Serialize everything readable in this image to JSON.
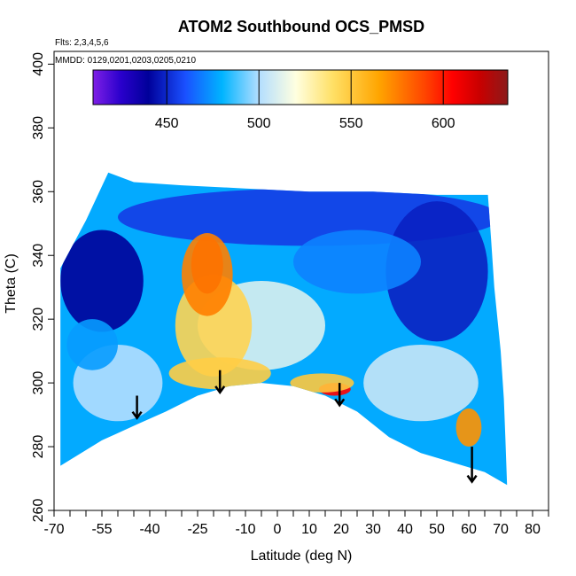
{
  "chart_data": {
    "type": "heatmap",
    "title": "ATOM2 Southbound OCS_PMSD",
    "annotations": {
      "flights": "Flts: 2,3,4,5,6",
      "dates": "MMDD: 0129,0201,0203,0205,0210"
    },
    "xlabel": "Latitude (deg N)",
    "ylabel": "Theta (C)",
    "xlim": [
      -70,
      85
    ],
    "ylim": [
      260,
      404
    ],
    "x_ticks": [
      -70,
      -55,
      -40,
      -25,
      -10,
      0,
      10,
      20,
      30,
      40,
      50,
      60,
      70,
      80
    ],
    "x_tick_labels": [
      "-70",
      "-55",
      "-40",
      "-25",
      "-10",
      "0",
      "10",
      "20",
      "30",
      "40",
      "50",
      "60",
      "70",
      "80"
    ],
    "x_minor_ticks": [
      -65,
      -60,
      -50,
      -45,
      -35,
      -30,
      -20,
      -15,
      -5,
      5,
      15,
      25,
      35,
      45,
      55,
      65,
      75,
      85
    ],
    "y_ticks": [
      260,
      280,
      300,
      320,
      340,
      360,
      380,
      400
    ],
    "y_tick_labels": [
      "260",
      "280",
      "300",
      "320",
      "340",
      "360",
      "380",
      "400"
    ],
    "colorbar": {
      "range": [
        410,
        635
      ],
      "ticks": [
        450,
        500,
        550,
        600
      ],
      "tick_labels": [
        "450",
        "500",
        "550",
        "600"
      ],
      "stops": [
        {
          "v": 410,
          "c": "#7f1fe6"
        },
        {
          "v": 425,
          "c": "#2a00cc"
        },
        {
          "v": 440,
          "c": "#00009a"
        },
        {
          "v": 460,
          "c": "#1a50ff"
        },
        {
          "v": 480,
          "c": "#00b4ff"
        },
        {
          "v": 500,
          "c": "#b3deff"
        },
        {
          "v": 520,
          "c": "#ffffe0"
        },
        {
          "v": 540,
          "c": "#ffe066"
        },
        {
          "v": 565,
          "c": "#ffa500"
        },
        {
          "v": 590,
          "c": "#ff4500"
        },
        {
          "v": 605,
          "c": "#ff0000"
        },
        {
          "v": 620,
          "c": "#c80000"
        },
        {
          "v": 635,
          "c": "#8b1a1a"
        }
      ]
    },
    "surface": {
      "tropopause_boundary": [
        {
          "lat": -68,
          "theta": 274
        },
        {
          "lat": -55,
          "theta": 282
        },
        {
          "lat": -44,
          "theta": 287
        },
        {
          "lat": -35,
          "theta": 291
        },
        {
          "lat": -25,
          "theta": 296
        },
        {
          "lat": -15,
          "theta": 299
        },
        {
          "lat": -5,
          "theta": 300
        },
        {
          "lat": 5,
          "theta": 299
        },
        {
          "lat": 15,
          "theta": 296
        },
        {
          "lat": 25,
          "theta": 291
        },
        {
          "lat": 35,
          "theta": 283
        },
        {
          "lat": 45,
          "theta": 278
        },
        {
          "lat": 55,
          "theta": 275
        },
        {
          "lat": 65,
          "theta": 272
        },
        {
          "lat": 72,
          "theta": 268
        }
      ],
      "upper_boundary": [
        {
          "lat": -68,
          "theta": 336
        },
        {
          "lat": -60,
          "theta": 351
        },
        {
          "lat": -53,
          "theta": 366
        },
        {
          "lat": -45,
          "theta": 363
        },
        {
          "lat": -30,
          "theta": 362
        },
        {
          "lat": -10,
          "theta": 361
        },
        {
          "lat": 10,
          "theta": 360
        },
        {
          "lat": 30,
          "theta": 360
        },
        {
          "lat": 50,
          "theta": 359
        },
        {
          "lat": 66,
          "theta": 359
        }
      ],
      "right_edge": [
        {
          "lat": 66,
          "theta": 359
        },
        {
          "lat": 67,
          "theta": 345
        },
        {
          "lat": 68,
          "theta": 330
        },
        {
          "lat": 69,
          "theta": 320
        },
        {
          "lat": 70,
          "theta": 310
        },
        {
          "lat": 71,
          "theta": 295
        },
        {
          "lat": 71.5,
          "theta": 282
        },
        {
          "lat": 72,
          "theta": 268
        }
      ]
    },
    "features": [
      {
        "name": "high-west-upper",
        "lat": -55,
        "theta": 332,
        "value": 440,
        "rx": 13,
        "ry": 16
      },
      {
        "name": "high-top-band",
        "lat": 10,
        "theta": 352,
        "value": 455,
        "rx": 60,
        "ry": 9
      },
      {
        "name": "northern-deep-blue",
        "lat": 50,
        "theta": 335,
        "value": 448,
        "rx": 16,
        "ry": 22
      },
      {
        "name": "mid-upper-blue",
        "lat": 25,
        "theta": 338,
        "value": 470,
        "rx": 20,
        "ry": 10
      },
      {
        "name": "central-light",
        "lat": -5,
        "theta": 318,
        "value": 510,
        "rx": 20,
        "ry": 14
      },
      {
        "name": "tropical-yellow-band",
        "lat": -20,
        "theta": 318,
        "value": 545,
        "rx": 12,
        "ry": 16
      },
      {
        "name": "lower-yellow-band",
        "lat": -18,
        "theta": 303,
        "value": 548,
        "rx": 16,
        "ry": 5
      },
      {
        "name": "red-core-tropics",
        "lat": -22,
        "theta": 337,
        "value": 612,
        "rx": 5,
        "ry": 9
      },
      {
        "name": "orange-halo-tropics",
        "lat": -22,
        "theta": 334,
        "value": 575,
        "rx": 8,
        "ry": 13
      },
      {
        "name": "red-near-20N",
        "lat": 18,
        "theta": 298,
        "value": 605,
        "rx": 5,
        "ry": 2
      },
      {
        "name": "yellow-near-20N",
        "lat": 14,
        "theta": 300,
        "value": 550,
        "rx": 10,
        "ry": 3
      },
      {
        "name": "orange-box-60N",
        "lat": 60,
        "theta": 286,
        "value": 570,
        "rx": 4,
        "ry": 6
      },
      {
        "name": "southern-light",
        "lat": -50,
        "theta": 300,
        "value": 500,
        "rx": 14,
        "ry": 12
      },
      {
        "name": "southern-blue-mid",
        "lat": -58,
        "theta": 312,
        "value": 475,
        "rx": 8,
        "ry": 8
      },
      {
        "name": "right-lower-light",
        "lat": 45,
        "theta": 300,
        "value": 505,
        "rx": 18,
        "ry": 12
      }
    ],
    "arrows": [
      {
        "lat": -44,
        "theta_top": 296,
        "theta_tip": 289
      },
      {
        "lat": -18,
        "theta_top": 304,
        "theta_tip": 297
      },
      {
        "lat": 19.5,
        "theta_top": 300,
        "theta_tip": 293
      },
      {
        "lat": 61,
        "theta_top": 280,
        "theta_tip": 269
      }
    ]
  }
}
